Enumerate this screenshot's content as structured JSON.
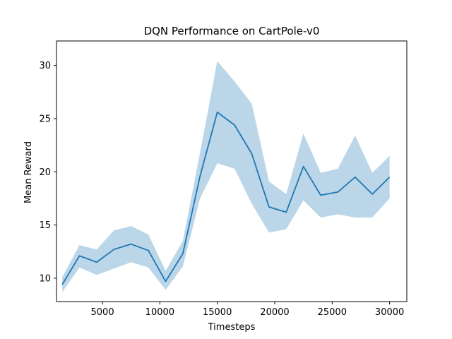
{
  "chart_data": {
    "type": "line",
    "title": "DQN Performance on CartPole-v0",
    "xlabel": "Timesteps",
    "ylabel": "Mean Reward",
    "xlim": [
      1000,
      31500
    ],
    "ylim": [
      7.8,
      32.3
    ],
    "xticks": [
      5000,
      10000,
      15000,
      20000,
      25000,
      30000
    ],
    "xtick_labels": [
      "5000",
      "10000",
      "15000",
      "20000",
      "25000",
      "30000"
    ],
    "yticks": [
      10,
      15,
      20,
      25,
      30
    ],
    "ytick_labels": [
      "10",
      "15",
      "20",
      "25",
      "30"
    ],
    "grid": false,
    "legend": "none",
    "series": [
      {
        "x": [
          1500,
          3000,
          4500,
          6000,
          7500,
          9000,
          10500,
          12000,
          13500,
          15000,
          16500,
          18000,
          19500,
          21000,
          22500,
          24000,
          25500,
          27000,
          28500,
          30000
        ],
        "mean": [
          9.4,
          12.1,
          11.5,
          12.7,
          13.2,
          12.6,
          9.7,
          12.3,
          19.6,
          25.6,
          24.4,
          21.7,
          16.7,
          16.2,
          20.5,
          17.8,
          18.1,
          19.5,
          17.9,
          19.5
        ],
        "lower": [
          8.7,
          11.0,
          10.3,
          10.9,
          11.5,
          11.0,
          8.9,
          11.1,
          17.5,
          20.8,
          20.3,
          17.0,
          14.3,
          14.6,
          17.3,
          15.7,
          16.0,
          15.7,
          15.7,
          17.5
        ],
        "upper": [
          10.1,
          13.1,
          12.7,
          14.5,
          14.9,
          14.1,
          10.7,
          13.5,
          21.8,
          30.4,
          28.5,
          26.4,
          19.1,
          17.9,
          23.6,
          19.9,
          20.3,
          23.4,
          19.9,
          21.5
        ]
      }
    ],
    "colors": {
      "line": "#1f77b4",
      "band": "#1f77b4",
      "band_opacity": 0.3
    }
  }
}
